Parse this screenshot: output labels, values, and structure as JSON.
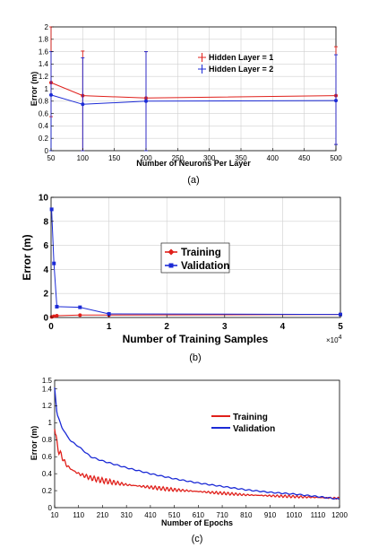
{
  "chart_data": [
    {
      "type": "line",
      "xlabel": "Number of Neurons Per Layer",
      "ylabel": "Error (m)",
      "caption": "(a)",
      "xlim": [
        50,
        500
      ],
      "ylim": [
        0,
        2
      ],
      "xticks": [
        "50",
        "100",
        "150",
        "200",
        "250",
        "300",
        "350",
        "400",
        "450",
        "500"
      ],
      "yticks": [
        "0",
        "0.2",
        "0.4",
        "0.6",
        "0.8",
        "1",
        "1.2",
        "1.4",
        "1.6",
        "1.8",
        "2"
      ],
      "error_bars": true,
      "grid": true,
      "legend_position": "top-right",
      "x": [
        50,
        100,
        200,
        500
      ],
      "series": [
        {
          "name": "Hidden Layer = 1",
          "color": "#e0201b",
          "values": [
            1.1,
            0.89,
            0.85,
            0.89
          ],
          "err_low": [
            0.55,
            0.89,
            0.85,
            0.79
          ],
          "err_high": [
            0.9,
            0.72,
            0.75,
            0.79
          ]
        },
        {
          "name": "Hidden Layer = 2",
          "color": "#1c2bd6",
          "values": [
            0.9,
            0.75,
            0.8,
            0.81
          ],
          "err_low": [
            0.9,
            0.75,
            0.8,
            0.71
          ],
          "err_high": [
            0.7,
            0.75,
            0.8,
            0.74
          ]
        }
      ]
    },
    {
      "type": "line",
      "xlabel": "Number of Training Samples",
      "ylabel": "Error (m)",
      "caption": "(b)",
      "xlim": [
        0,
        5
      ],
      "ylim": [
        0,
        10
      ],
      "xticks": [
        "0",
        "1",
        "2",
        "3",
        "4",
        "5"
      ],
      "yticks": [
        "0",
        "2",
        "4",
        "6",
        "8",
        "10"
      ],
      "x_multiplier": "×10",
      "x_exponent": "4",
      "grid": true,
      "legend_position": "center",
      "x": [
        0.01,
        0.05,
        0.1,
        0.5,
        1,
        5
      ],
      "series": [
        {
          "name": "Training",
          "color": "#e0201b",
          "values": [
            0.05,
            0.1,
            0.15,
            0.2,
            0.2,
            0.25
          ]
        },
        {
          "name": "Validation",
          "color": "#1c2bd6",
          "values": [
            9.0,
            4.5,
            0.9,
            0.85,
            0.3,
            0.25
          ]
        }
      ]
    },
    {
      "type": "line",
      "xlabel": "Number of Epochs",
      "ylabel": "Error (m)",
      "caption": "(c)",
      "xlim": [
        10,
        1200
      ],
      "ylim": [
        0,
        1.5
      ],
      "xticks": [
        "10",
        "110",
        "210",
        "310",
        "410",
        "510",
        "610",
        "710",
        "810",
        "910",
        "1010",
        "1110",
        "1200"
      ],
      "yticks": [
        "0",
        "0.2",
        "0.4",
        "0.6",
        "0.8",
        "1",
        "1.2",
        "1.4",
        "1.5"
      ],
      "grid": false,
      "legend_position": "top-right",
      "x": [
        10,
        20,
        40,
        60,
        80,
        110,
        160,
        210,
        310,
        410,
        510,
        610,
        710,
        810,
        910,
        1010,
        1110,
        1200
      ],
      "series": [
        {
          "name": "Training",
          "color": "#e0201b",
          "values": [
            1.0,
            0.72,
            0.6,
            0.5,
            0.45,
            0.4,
            0.35,
            0.32,
            0.27,
            0.24,
            0.21,
            0.19,
            0.17,
            0.15,
            0.14,
            0.13,
            0.12,
            0.11
          ]
        },
        {
          "name": "Validation",
          "color": "#1c2bd6",
          "values": [
            1.42,
            1.1,
            0.95,
            0.85,
            0.78,
            0.72,
            0.6,
            0.55,
            0.47,
            0.4,
            0.34,
            0.29,
            0.25,
            0.21,
            0.18,
            0.16,
            0.13,
            0.1
          ]
        }
      ]
    }
  ]
}
